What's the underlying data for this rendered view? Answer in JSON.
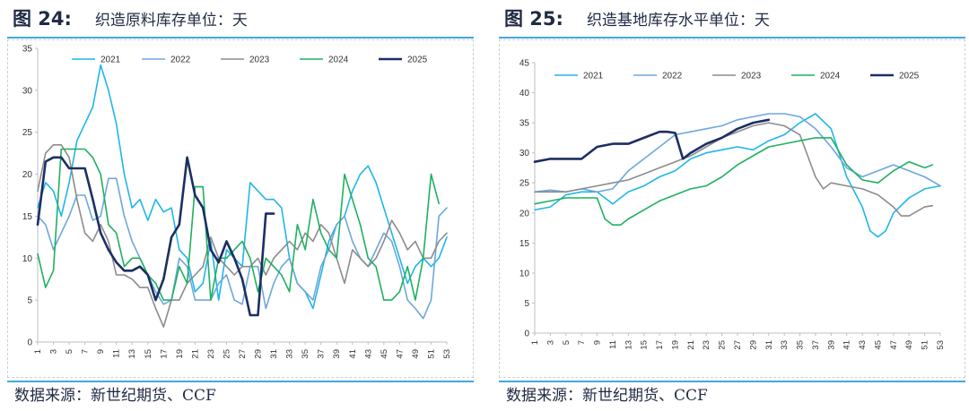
{
  "figures": [
    {
      "number": "图 24:",
      "title": "织造原料库存单位：天",
      "source": "数据来源：新世纪期货、CCF"
    },
    {
      "number": "图 25:",
      "title": "织造基地库存水平单位：天",
      "source": "数据来源：新世纪期货、CCF"
    }
  ],
  "chart_data": [
    {
      "type": "line",
      "title": "织造原料库存单位：天",
      "ylim": [
        0,
        35
      ],
      "yticks": [
        0,
        5,
        10,
        15,
        20,
        25,
        30,
        35
      ],
      "xrange": [
        1,
        53
      ],
      "xticks": [
        1,
        3,
        5,
        7,
        9,
        11,
        13,
        15,
        17,
        19,
        21,
        23,
        25,
        27,
        29,
        31,
        33,
        35,
        37,
        39,
        41,
        43,
        45,
        47,
        49,
        51,
        53
      ],
      "legend": "top",
      "series": [
        {
          "name": "2021",
          "color": "#1fb6ea",
          "width": 1.6,
          "x": [
            1,
            2,
            3,
            4,
            5,
            6,
            7,
            8,
            9,
            10,
            11,
            12,
            13,
            14,
            15,
            16,
            17,
            18,
            19,
            20,
            21,
            22,
            23,
            24,
            25,
            26,
            27,
            28,
            29,
            30,
            31,
            32,
            33,
            34,
            35,
            36,
            37,
            38,
            39,
            40,
            41,
            42,
            43,
            44,
            45,
            46,
            47,
            48,
            49,
            50,
            51,
            52,
            53
          ],
          "values": [
            16,
            19,
            18,
            15,
            19,
            24,
            26,
            28,
            33,
            30,
            26,
            20,
            16,
            17,
            14.5,
            17,
            15.5,
            16,
            11,
            10,
            6,
            7,
            12,
            5,
            11,
            10,
            9,
            19,
            18,
            17,
            17,
            16,
            10,
            7,
            6,
            4,
            8,
            12,
            14,
            15,
            18,
            20,
            21,
            19,
            16,
            13,
            10,
            7,
            9,
            10,
            9,
            10,
            12.5
          ]
        },
        {
          "name": "2022",
          "color": "#6ea7dc",
          "width": 1.6,
          "x": [
            1,
            2,
            3,
            4,
            5,
            6,
            7,
            8,
            9,
            10,
            11,
            12,
            13,
            14,
            15,
            16,
            17,
            18,
            19,
            20,
            21,
            22,
            23,
            24,
            25,
            26,
            27,
            28,
            29,
            30,
            31,
            32,
            33,
            34,
            35,
            36,
            37,
            38,
            39,
            40,
            41,
            42,
            43,
            44,
            45,
            46,
            47,
            48,
            49,
            50,
            51,
            52,
            53
          ],
          "values": [
            15,
            14,
            11,
            13,
            15,
            17.5,
            17.5,
            14.5,
            15,
            19.5,
            19.5,
            15,
            12,
            10,
            8,
            6,
            4.5,
            5,
            10,
            9,
            5,
            5,
            5,
            7,
            8,
            5,
            4.5,
            9,
            9,
            4,
            7,
            9,
            10,
            7,
            6,
            5,
            9,
            11,
            14,
            15,
            12,
            10,
            9,
            11,
            13,
            12,
            9,
            5,
            4,
            2.8,
            5,
            15,
            16
          ]
        },
        {
          "name": "2023",
          "color": "#8c8c8c",
          "width": 1.6,
          "x": [
            1,
            2,
            3,
            4,
            5,
            6,
            7,
            8,
            9,
            10,
            11,
            12,
            13,
            14,
            15,
            16,
            17,
            18,
            19,
            20,
            21,
            22,
            23,
            24,
            25,
            26,
            27,
            28,
            29,
            30,
            31,
            32,
            33,
            34,
            35,
            36,
            37,
            38,
            39,
            40,
            41,
            42,
            43,
            44,
            45,
            46,
            47,
            48,
            49,
            50,
            51,
            52,
            53
          ],
          "values": [
            18,
            22.5,
            23.5,
            23.5,
            22,
            17,
            13,
            12,
            14,
            12,
            8,
            8,
            7.5,
            6.5,
            6.5,
            4,
            1.8,
            5,
            5,
            7,
            8,
            9,
            12.5,
            10,
            9,
            8,
            9,
            9,
            10,
            8,
            10,
            11,
            12,
            11,
            13,
            12,
            14,
            13,
            10,
            7,
            11,
            10,
            9,
            10,
            12,
            14.5,
            13,
            11,
            12,
            10,
            10,
            12,
            13
          ]
        },
        {
          "name": "2024",
          "color": "#1fb060",
          "width": 1.6,
          "x": [
            1,
            2,
            3,
            4,
            5,
            6,
            7,
            8,
            9,
            10,
            11,
            12,
            13,
            14,
            15,
            16,
            17,
            18,
            19,
            20,
            21,
            22,
            23,
            24,
            25,
            26,
            27,
            28,
            29,
            30,
            31,
            32,
            33,
            34,
            35,
            36,
            37,
            38,
            39,
            40,
            41,
            42,
            43,
            44,
            45,
            46,
            47,
            48,
            49,
            50,
            51,
            52
          ],
          "values": [
            10.5,
            6.5,
            8.5,
            23,
            23,
            23,
            23,
            22,
            20,
            14,
            13,
            9,
            10,
            10,
            8,
            7,
            5,
            5,
            9,
            7,
            18.5,
            18.5,
            5,
            10,
            10,
            11,
            12,
            10,
            6,
            10,
            9,
            8,
            6,
            14,
            11,
            17,
            13,
            11,
            10,
            20,
            17,
            14,
            10,
            9,
            5,
            5,
            6,
            9,
            5,
            10,
            20,
            16.5
          ]
        },
        {
          "name": "2025",
          "color": "#1c2f63",
          "width": 2.6,
          "x": [
            1,
            2,
            3,
            4,
            5,
            6,
            7,
            8,
            9,
            10,
            11,
            12,
            13,
            14,
            15,
            16,
            17,
            18,
            19,
            20,
            21,
            22,
            23,
            24,
            25,
            26,
            27,
            28,
            29,
            30,
            31
          ],
          "values": [
            14,
            21.5,
            22,
            22,
            20.7,
            20.7,
            20.7,
            17,
            13,
            11,
            9.5,
            8.5,
            8.5,
            9,
            8,
            5,
            7.5,
            12.5,
            14,
            22,
            17.5,
            16,
            11,
            9.5,
            12,
            10,
            7.5,
            3.2,
            3.2,
            15.3,
            15.3
          ]
        }
      ]
    },
    {
      "type": "line",
      "title": "织造基地库存水平单位：天",
      "ylim": [
        0,
        45
      ],
      "yticks": [
        0,
        5,
        10,
        15,
        20,
        25,
        30,
        35,
        40,
        45
      ],
      "xrange": [
        1,
        53
      ],
      "xticks": [
        1,
        3,
        5,
        7,
        9,
        11,
        13,
        15,
        17,
        19,
        21,
        23,
        25,
        27,
        29,
        31,
        33,
        35,
        37,
        39,
        41,
        43,
        45,
        47,
        49,
        51,
        53
      ],
      "legend": "top",
      "series": [
        {
          "name": "2021",
          "color": "#1fb6ea",
          "width": 1.6,
          "x": [
            1,
            3,
            5,
            7,
            9,
            11,
            13,
            15,
            17,
            19,
            21,
            23,
            25,
            27,
            29,
            31,
            33,
            35,
            37,
            39,
            41,
            43,
            44,
            45,
            46,
            47,
            49,
            51,
            53
          ],
          "values": [
            20.5,
            21,
            23,
            23.5,
            23.5,
            21.5,
            23.5,
            24.5,
            26,
            27,
            29,
            30,
            30.5,
            31,
            30.5,
            32,
            33,
            35,
            36.5,
            34,
            26,
            21,
            17,
            16,
            17,
            20,
            22.5,
            24,
            24.5
          ]
        },
        {
          "name": "2022",
          "color": "#6ea7dc",
          "width": 1.6,
          "x": [
            1,
            3,
            5,
            7,
            9,
            11,
            13,
            15,
            17,
            19,
            21,
            23,
            25,
            27,
            29,
            31,
            33,
            35,
            37,
            39,
            41,
            43,
            45,
            47,
            49,
            51,
            53
          ],
          "values": [
            23.5,
            23.8,
            23.5,
            24,
            23.5,
            24,
            27,
            29,
            31,
            33,
            33.5,
            34,
            34.5,
            35.5,
            36,
            36.5,
            36.5,
            36,
            34,
            31,
            27.5,
            26,
            27,
            28,
            27,
            26,
            24.5
          ]
        },
        {
          "name": "2023",
          "color": "#8c8c8c",
          "width": 1.6,
          "x": [
            1,
            3,
            5,
            7,
            9,
            11,
            13,
            15,
            17,
            19,
            21,
            23,
            25,
            27,
            29,
            31,
            33,
            35,
            37,
            38,
            39,
            41,
            43,
            45,
            47,
            48,
            49,
            51,
            52
          ],
          "values": [
            23.5,
            23.5,
            23.5,
            24,
            24.5,
            25,
            25.5,
            26.5,
            27.5,
            28.5,
            29.5,
            31,
            32.5,
            33.5,
            34.5,
            35,
            34.5,
            33,
            26,
            24,
            25,
            24.5,
            24,
            23,
            21,
            19.5,
            19.5,
            21,
            21.2
          ]
        },
        {
          "name": "2024",
          "color": "#1fb060",
          "width": 1.6,
          "x": [
            1,
            3,
            5,
            7,
            9,
            10,
            11,
            12,
            13,
            15,
            17,
            19,
            21,
            23,
            25,
            27,
            29,
            31,
            33,
            35,
            37,
            39,
            41,
            43,
            45,
            47,
            49,
            51,
            52
          ],
          "values": [
            21.5,
            22,
            22.5,
            22.5,
            22.5,
            19,
            18,
            18,
            19,
            20.5,
            22,
            23,
            24,
            24.5,
            26,
            28,
            29.5,
            31,
            31.5,
            32,
            32.5,
            32.5,
            28,
            25.5,
            25,
            27,
            28.5,
            27.5,
            28
          ]
        },
        {
          "name": "2025",
          "color": "#1c2f63",
          "width": 2.6,
          "x": [
            1,
            3,
            5,
            7,
            9,
            11,
            13,
            15,
            17,
            18,
            19,
            20,
            21,
            23,
            25,
            27,
            29,
            31
          ],
          "values": [
            28.5,
            29,
            29,
            29,
            31,
            31.5,
            31.5,
            32.5,
            33.5,
            33.5,
            33.3,
            29,
            30,
            31.5,
            32.5,
            34,
            35,
            35.5
          ]
        }
      ]
    }
  ]
}
